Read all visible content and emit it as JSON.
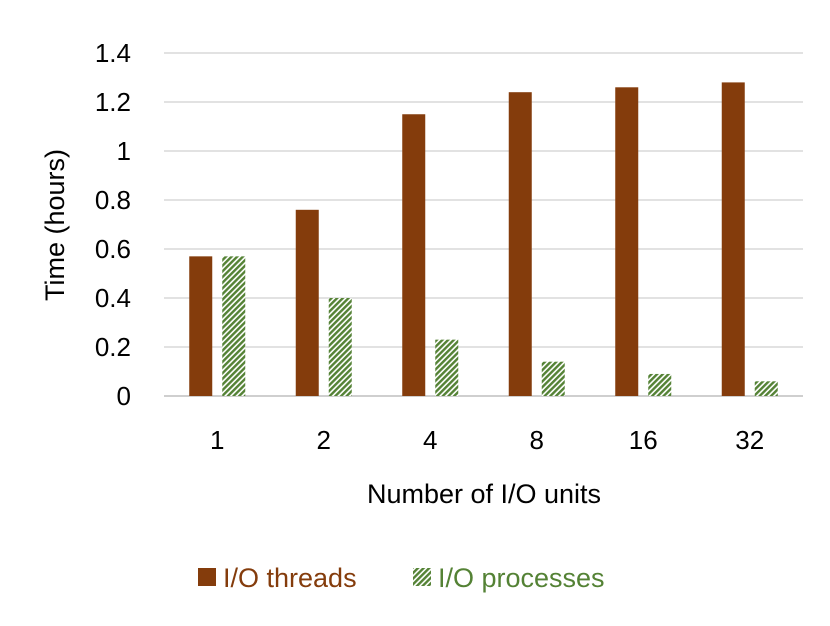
{
  "chart_data": {
    "type": "bar",
    "categories": [
      "1",
      "2",
      "4",
      "8",
      "16",
      "32"
    ],
    "series": [
      {
        "name": "I/O threads",
        "values": [
          0.57,
          0.76,
          1.15,
          1.24,
          1.26,
          1.28
        ],
        "color": "#843C0C",
        "fill": "solid"
      },
      {
        "name": "I/O processes",
        "values": [
          0.57,
          0.4,
          0.23,
          0.14,
          0.09,
          0.06
        ],
        "color": "#548235",
        "fill": "diagonal-hatch"
      }
    ],
    "xlabel": "Number of I/O units",
    "ylabel": "Time (hours)",
    "ylim": [
      0,
      1.4
    ],
    "yticks": [
      "0",
      "0.2",
      "0.4",
      "0.6",
      "0.8",
      "1",
      "1.2",
      "1.4"
    ],
    "grid": "horizontal",
    "legend_position": "bottom"
  }
}
